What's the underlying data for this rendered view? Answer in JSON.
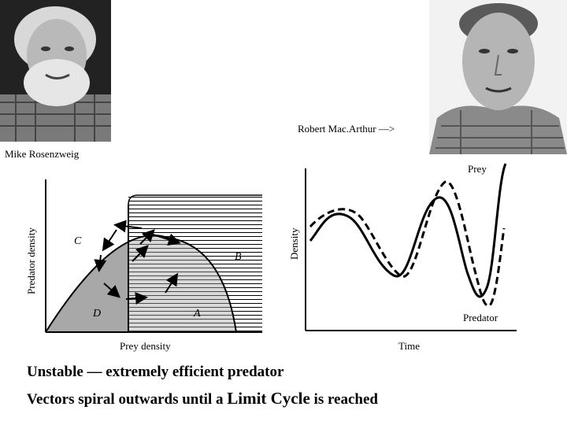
{
  "photos": {
    "left_caption": "Mike Rosenzweig",
    "right_caption": "Robert Mac.Arthur —>"
  },
  "phase_plot": {
    "ylabel": "Predator density",
    "xlabel": "Prey density",
    "regions": [
      "C",
      "B",
      "D",
      "A"
    ]
  },
  "time_plot": {
    "ylabel": "Density",
    "xlabel": "Time",
    "series": [
      "Prey",
      "Predator"
    ]
  },
  "text": {
    "line1": "Unstable — extremely efficient  predator",
    "line2_prefix": "Vectors spiral outwards until a ",
    "line2_emphasis": "Limit Cycle",
    "line2_suffix": " is reached"
  }
}
